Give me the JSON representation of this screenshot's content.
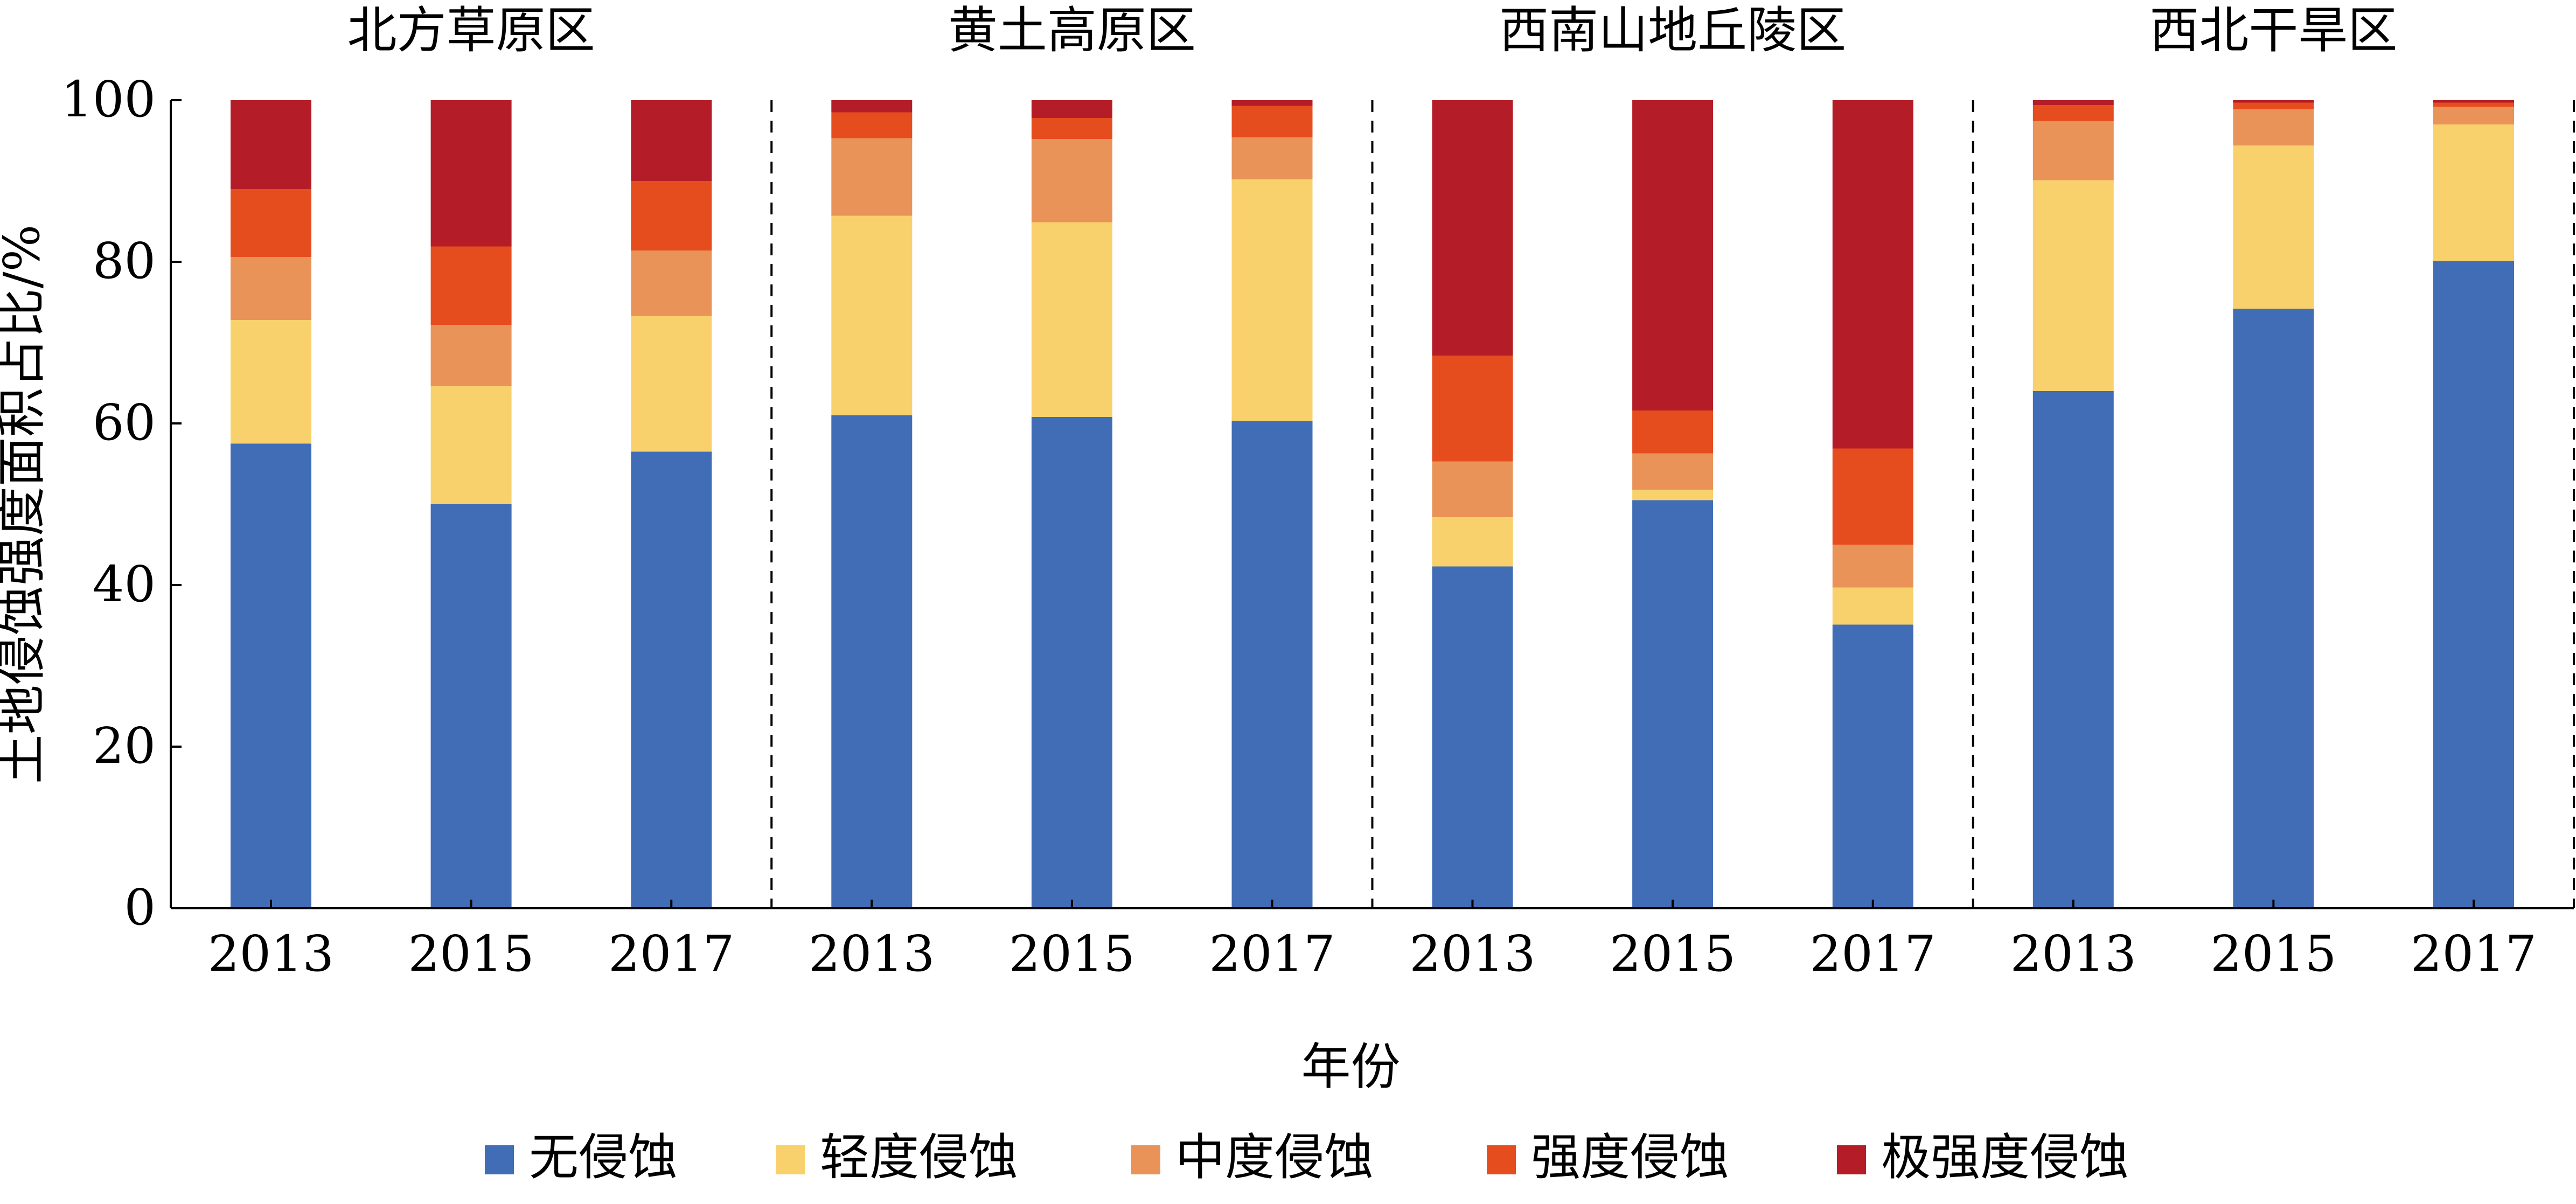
{
  "chart_data": {
    "type": "bar",
    "stacked": true,
    "ylabel": "土地侵蚀强度面积占比/%",
    "xlabel": "年份",
    "ylim": [
      0,
      100
    ],
    "yticks": [
      0,
      20,
      40,
      60,
      80,
      100
    ],
    "grid": false,
    "legend_position": "bottom",
    "groups": [
      {
        "name": "北方草原区",
        "categories": [
          "2013",
          "2015",
          "2017"
        ],
        "series": [
          {
            "name": "无侵蚀",
            "values": [
              57.5,
              50,
              56.5
            ]
          },
          {
            "name": "轻度侵蚀",
            "values": [
              15.3,
              14.6,
              16.8
            ]
          },
          {
            "name": "中度侵蚀",
            "values": [
              7.8,
              7.6,
              8.1
            ]
          },
          {
            "name": "强度侵蚀",
            "values": [
              8.4,
              9.7,
              8.6
            ]
          },
          {
            "name": "极强度侵蚀",
            "values": [
              11,
              18.1,
              10
            ]
          }
        ]
      },
      {
        "name": "黄土高原区",
        "categories": [
          "2013",
          "2015",
          "2017"
        ],
        "series": [
          {
            "name": "无侵蚀",
            "values": [
              61,
              60.8,
              60.3
            ]
          },
          {
            "name": "轻度侵蚀",
            "values": [
              24.7,
              24.1,
              29.9
            ]
          },
          {
            "name": "中度侵蚀",
            "values": [
              9.6,
              10.3,
              5.2
            ]
          },
          {
            "name": "强度侵蚀",
            "values": [
              3.2,
              2.6,
              3.9
            ]
          },
          {
            "name": "极强度侵蚀",
            "values": [
              1.5,
              2.2,
              0.7
            ]
          }
        ]
      },
      {
        "name": "西南山地丘陵区",
        "categories": [
          "2013",
          "2015",
          "2017"
        ],
        "series": [
          {
            "name": "无侵蚀",
            "values": [
              42.3,
              50.5,
              35.1
            ]
          },
          {
            "name": "轻度侵蚀",
            "values": [
              6.1,
              1.3,
              4.6
            ]
          },
          {
            "name": "中度侵蚀",
            "values": [
              6.9,
              4.5,
              5.3
            ]
          },
          {
            "name": "强度侵蚀",
            "values": [
              13.1,
              5.3,
              11.9
            ]
          },
          {
            "name": "极强度侵蚀",
            "values": [
              31.6,
              38.4,
              43.1
            ]
          }
        ]
      },
      {
        "name": "西北干旱区",
        "categories": [
          "2013",
          "2015",
          "2017"
        ],
        "series": [
          {
            "name": "无侵蚀",
            "values": [
              64,
              74.2,
              80.1
            ]
          },
          {
            "name": "轻度侵蚀",
            "values": [
              26.1,
              20.2,
              16.9
            ]
          },
          {
            "name": "中度侵蚀",
            "values": [
              7.3,
              4.5,
              2.2
            ]
          },
          {
            "name": "强度侵蚀",
            "values": [
              2,
              0.8,
              0.5
            ]
          },
          {
            "name": "极强度侵蚀",
            "values": [
              0.6,
              0.3,
              0.3
            ]
          }
        ]
      }
    ],
    "colors": [
      "#416db6",
      "#f8d16d",
      "#ea9358",
      "#e64d1e",
      "#b41d27"
    ]
  }
}
